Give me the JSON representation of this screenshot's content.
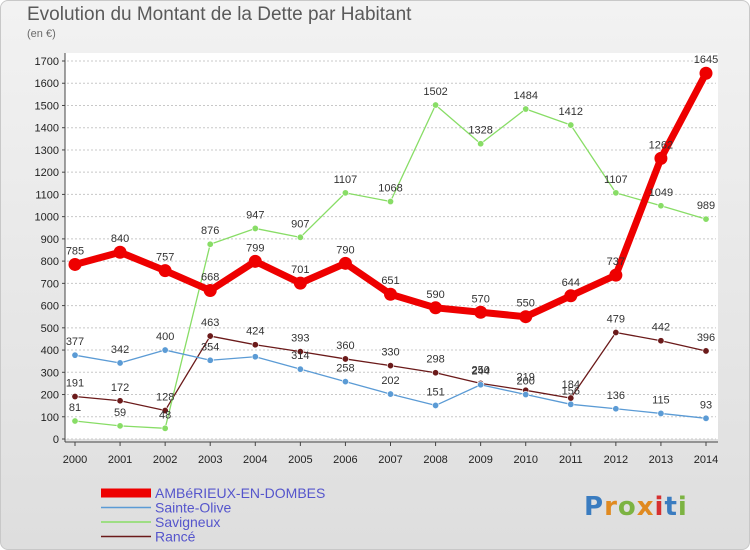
{
  "chart_data": {
    "type": "line",
    "title": "Evolution du Montant de la Dette par Habitant",
    "ylabel": "(en €)",
    "x": [
      "2000",
      "2001",
      "2002",
      "2003",
      "2004",
      "2005",
      "2006",
      "2007",
      "2008",
      "2009",
      "2010",
      "2011",
      "2012",
      "2013",
      "2014"
    ],
    "ylim": [
      0,
      1700
    ],
    "yticks": [
      0,
      100,
      200,
      300,
      400,
      500,
      600,
      700,
      800,
      900,
      1000,
      1100,
      1200,
      1300,
      1400,
      1500,
      1600,
      1700
    ],
    "grid": "horizontal dashed",
    "legend_position": "bottom-left",
    "series": [
      {
        "name": "AMBéRIEUX-EN-DOMBES",
        "color": "#ee0000",
        "values": [
          785,
          840,
          757,
          668,
          799,
          701,
          790,
          651,
          590,
          570,
          550,
          644,
          737,
          1262,
          1645
        ],
        "labels": [
          "785",
          "840",
          "757",
          "668",
          "799",
          "701",
          "790",
          "651",
          "590",
          "570",
          "550",
          "644",
          "737",
          "1262",
          "1645"
        ]
      },
      {
        "name": "Sainte-Olive",
        "color": "#5b9bd5",
        "values": [
          377,
          342,
          400,
          354,
          370,
          314,
          258,
          202,
          151,
          244,
          200,
          156,
          136,
          115,
          93
        ],
        "labels": [
          "377",
          "342",
          "400",
          "354",
          "",
          "314",
          "258",
          "202",
          "151",
          "244",
          "200",
          "156",
          "136",
          "115",
          "93"
        ]
      },
      {
        "name": "Savigneux",
        "color": "#88dd66",
        "values": [
          81,
          59,
          48,
          876,
          947,
          907,
          1107,
          1068,
          1502,
          1328,
          1484,
          1412,
          1107,
          1049,
          989
        ],
        "labels": [
          "81",
          "59",
          "48",
          "876",
          "947",
          "907",
          "1107",
          "1068",
          "1502",
          "1328",
          "1484",
          "1412",
          "1107",
          "1049",
          "989"
        ]
      },
      {
        "name": "Rancé",
        "color": "#6b1a1a",
        "values": [
          191,
          172,
          128,
          463,
          424,
          393,
          360,
          330,
          298,
          250,
          219,
          184,
          479,
          442,
          396
        ],
        "labels": [
          "191",
          "172",
          "128",
          "463",
          "424",
          "393",
          "360",
          "330",
          "298",
          "250",
          "219",
          "184",
          "479",
          "442",
          "396"
        ]
      }
    ]
  },
  "logo": {
    "text": "Proxiti",
    "colors": [
      "#3a7cc0",
      "#e08a20",
      "#7cb342",
      "#e08a20",
      "#d63030",
      "#3a7cc0",
      "#7cb342"
    ]
  }
}
